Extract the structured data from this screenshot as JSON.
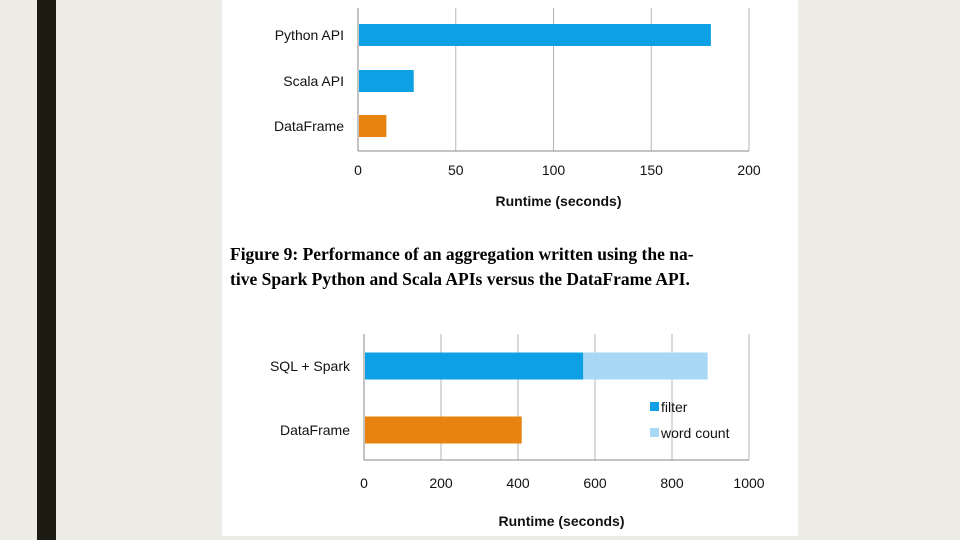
{
  "slide": {
    "background": "#eeece6",
    "accent_bar_color": "#1b1b12"
  },
  "figure9_caption": {
    "line1": "Figure 9: Performance of an aggregation written using the na-",
    "line2": "tive Spark Python and Scala APIs versus the DataFrame API."
  },
  "chart_data": [
    {
      "type": "bar",
      "orientation": "horizontal",
      "title": "",
      "categories": [
        "Python API",
        "Scala API",
        "DataFrame"
      ],
      "values": [
        180,
        28,
        14
      ],
      "colors": [
        "#0ea0e4",
        "#0ea0e4",
        "#e8820e"
      ],
      "xlabel": "Runtime (seconds)",
      "xlim": [
        0,
        200
      ],
      "xticks": [
        0,
        50,
        100,
        150,
        200
      ],
      "grid": true
    },
    {
      "type": "bar",
      "orientation": "horizontal",
      "stacked": true,
      "title": "",
      "categories": [
        "SQL + Spark",
        "DataFrame"
      ],
      "series": [
        {
          "name": "filter",
          "values": [
            567,
            407
          ],
          "colors": [
            "#0ea0e4",
            "#e8820e"
          ]
        },
        {
          "name": "word count",
          "values": [
            323,
            0
          ],
          "colors": [
            "#a8d8f6",
            "#a8d8f6"
          ]
        }
      ],
      "legend": [
        "filter",
        "word count"
      ],
      "legend_colors": [
        "#0ea0e4",
        "#a8d8f6"
      ],
      "legend_position": "right",
      "xlabel": "Runtime (seconds)",
      "xlim": [
        0,
        1000
      ],
      "xticks": [
        0,
        200,
        400,
        600,
        800,
        1000
      ],
      "grid": true
    }
  ]
}
